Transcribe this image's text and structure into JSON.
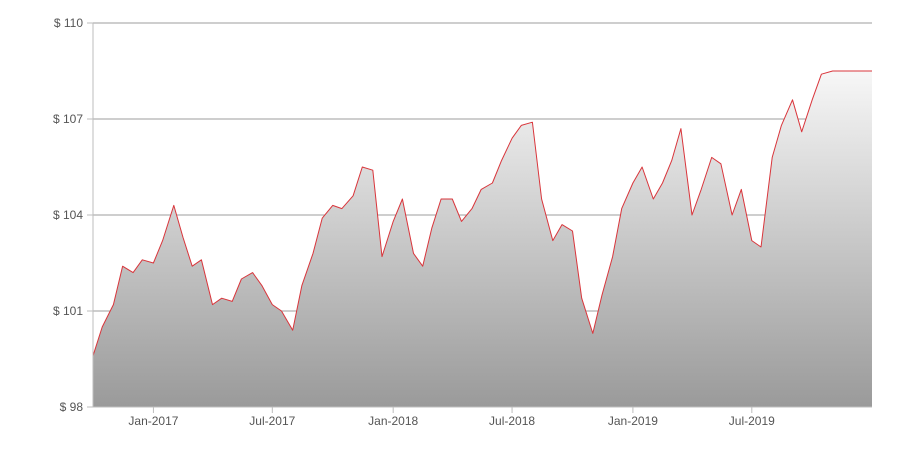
{
  "chart_data": {
    "type": "area",
    "title": "",
    "xlabel": "",
    "ylabel": "",
    "ylim": [
      98,
      110
    ],
    "xlim": [
      "2016-10-01",
      "2019-12-31"
    ],
    "y_ticks": [
      {
        "value": 98,
        "label": "$ 98"
      },
      {
        "value": 101,
        "label": "$ 101"
      },
      {
        "value": 104,
        "label": "$ 104"
      },
      {
        "value": 107,
        "label": "$ 107"
      },
      {
        "value": 110,
        "label": "$ 110"
      }
    ],
    "x_ticks": [
      {
        "date": "2017-01-01",
        "label": "Jan-2017"
      },
      {
        "date": "2017-07-01",
        "label": "Jul-2017"
      },
      {
        "date": "2018-01-01",
        "label": "Jan-2018"
      },
      {
        "date": "2018-07-01",
        "label": "Jul-2018"
      },
      {
        "date": "2019-01-01",
        "label": "Jan-2019"
      },
      {
        "date": "2019-07-01",
        "label": "Jul-2019"
      }
    ],
    "grid": true,
    "colors": {
      "line": "#d9353b",
      "fill_top": "#f7f7f7",
      "fill_bottom": "#9a9a9a",
      "grid": "#9e9e9e",
      "axis": "#bdbdbd"
    },
    "series": [
      {
        "x": [
          "2016-10-01",
          "2016-10-15",
          "2016-11-01",
          "2016-11-15",
          "2016-12-01",
          "2016-12-15",
          "2017-01-01",
          "2017-01-15",
          "2017-02-01",
          "2017-02-15",
          "2017-03-01",
          "2017-03-15",
          "2017-04-01",
          "2017-04-15",
          "2017-05-01",
          "2017-05-15",
          "2017-06-01",
          "2017-06-15",
          "2017-07-01",
          "2017-07-15",
          "2017-08-01",
          "2017-08-15",
          "2017-09-01",
          "2017-09-15",
          "2017-10-01",
          "2017-10-15",
          "2017-11-01",
          "2017-11-15",
          "2017-12-01",
          "2017-12-15",
          "2018-01-01",
          "2018-01-15",
          "2018-02-01",
          "2018-02-15",
          "2018-03-01",
          "2018-03-15",
          "2018-04-01",
          "2018-04-15",
          "2018-05-01",
          "2018-05-15",
          "2018-06-01",
          "2018-06-15",
          "2018-07-01",
          "2018-07-15",
          "2018-08-01",
          "2018-08-15",
          "2018-09-01",
          "2018-09-15",
          "2018-10-01",
          "2018-10-15",
          "2018-11-01",
          "2018-11-15",
          "2018-12-01",
          "2018-12-15",
          "2019-01-01",
          "2019-01-15",
          "2019-02-01",
          "2019-02-15",
          "2019-03-01",
          "2019-03-15",
          "2019-04-01",
          "2019-04-15",
          "2019-05-01",
          "2019-05-15",
          "2019-06-01",
          "2019-06-15",
          "2019-07-01",
          "2019-07-15",
          "2019-08-01",
          "2019-08-15",
          "2019-09-01",
          "2019-09-15",
          "2019-10-01",
          "2019-10-15",
          "2019-11-01",
          "2019-11-15",
          "2019-12-01",
          "2019-12-15",
          "2019-12-31"
        ],
        "values": [
          99.6,
          100.5,
          101.2,
          102.4,
          102.2,
          102.6,
          102.5,
          103.2,
          104.3,
          103.3,
          102.4,
          102.6,
          101.2,
          101.4,
          101.3,
          102.0,
          102.2,
          101.8,
          101.2,
          101.0,
          100.4,
          101.8,
          102.8,
          103.9,
          104.3,
          104.2,
          104.6,
          105.5,
          105.4,
          102.7,
          103.8,
          104.5,
          102.8,
          102.4,
          103.6,
          104.5,
          104.5,
          103.8,
          104.2,
          104.8,
          105.0,
          105.7,
          106.4,
          106.8,
          106.9,
          104.5,
          103.2,
          103.7,
          103.5,
          101.4,
          100.3,
          101.5,
          102.7,
          104.2,
          105.0,
          105.5,
          104.5,
          105.0,
          105.7,
          106.7,
          104.0,
          104.8,
          105.8,
          105.6,
          104.0,
          104.8,
          103.2,
          103.0,
          105.8,
          106.8,
          107.6,
          106.6,
          107.6,
          108.4,
          108.5,
          108.5,
          108.5,
          108.5,
          108.5
        ]
      }
    ]
  }
}
